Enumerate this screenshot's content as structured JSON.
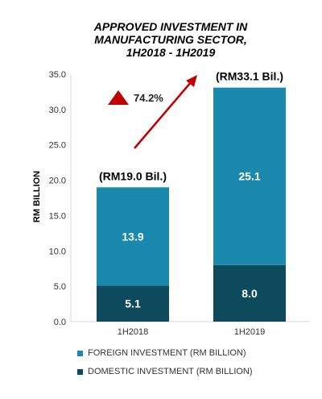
{
  "chart_data": {
    "type": "stacked-bar",
    "title": [
      "APPROVED INVESTMENT IN",
      "MANUFACTURING SECTOR,",
      "1H2018 - 1H2019"
    ],
    "ylabel": "RM BILLION",
    "ylim": [
      0,
      35
    ],
    "yticks": [
      "0.0",
      "5.0",
      "10.0",
      "15.0",
      "20.0",
      "25.0",
      "30.0",
      "35.0"
    ],
    "categories": [
      "1H2018",
      "1H2019"
    ],
    "series": [
      {
        "name": "DOMESTIC INVESTMENT (RM BILLION)",
        "values": [
          5.1,
          8.0
        ],
        "labels": [
          "5.1",
          "8.0"
        ],
        "color": "#0d4a5c"
      },
      {
        "name": "FOREIGN INVESTMENT (RM BILLION)",
        "values": [
          13.9,
          25.1
        ],
        "labels": [
          "13.9",
          "25.1"
        ],
        "color": "#1a89ad"
      }
    ],
    "totals": [
      "(RM19.0 Bil.)",
      "(RM33.1 Bil.)"
    ],
    "growth": {
      "label": "74.2%",
      "marker_color": "#c00000",
      "arrow_color": "#c00000"
    },
    "grid": false,
    "legend": "bottom"
  }
}
